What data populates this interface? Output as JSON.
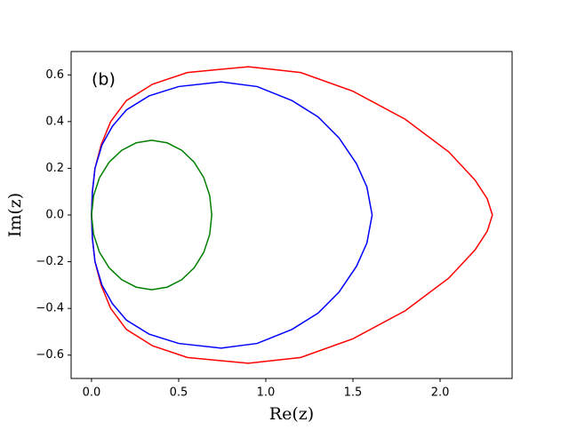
{
  "chart_data": {
    "type": "line",
    "annotation": "(b)",
    "xlabel": "Re(z)",
    "ylabel": "Im(z)",
    "xlim": [
      -0.117,
      2.413
    ],
    "ylim": [
      -0.7,
      0.7
    ],
    "xticks": [
      {
        "value": 0,
        "label": "0.0"
      },
      {
        "value": 0.5,
        "label": "0.5"
      },
      {
        "value": 1,
        "label": "1.0"
      },
      {
        "value": 1.5,
        "label": "1.5"
      },
      {
        "value": 2,
        "label": "2.0"
      }
    ],
    "yticks": [
      {
        "value": -0.6,
        "label": "−0.6"
      },
      {
        "value": -0.4,
        "label": "−0.4"
      },
      {
        "value": -0.2,
        "label": "−0.2"
      },
      {
        "value": 0,
        "label": "0.0"
      },
      {
        "value": 0.2,
        "label": "0.2"
      },
      {
        "value": 0.4,
        "label": "0.4"
      },
      {
        "value": 0.6,
        "label": "0.6"
      }
    ],
    "series": [
      {
        "color": "#ff0000",
        "x": [
          0,
          0.005,
          0.02,
          0.055,
          0.11,
          0.2,
          0.35,
          0.55,
          0.9,
          1.2,
          1.5,
          1.8,
          2.05,
          2.2,
          2.27,
          2.3,
          2.27,
          2.2,
          2.05,
          1.8,
          1.5,
          1.2,
          0.9,
          0.55,
          0.35,
          0.2,
          0.11,
          0.055,
          0.02,
          0.005,
          0
        ],
        "values": [
          0,
          0.1,
          0.2,
          0.3,
          0.4,
          0.49,
          0.56,
          0.61,
          0.635,
          0.61,
          0.53,
          0.41,
          0.27,
          0.15,
          0.07,
          0,
          -0.07,
          -0.15,
          -0.27,
          -0.41,
          -0.53,
          -0.61,
          -0.635,
          -0.61,
          -0.56,
          -0.49,
          -0.4,
          -0.3,
          -0.2,
          -0.1,
          0
        ]
      },
      {
        "color": "#0000ff",
        "x": [
          0,
          0.005,
          0.02,
          0.06,
          0.12,
          0.2,
          0.33,
          0.5,
          0.745,
          0.95,
          1.15,
          1.3,
          1.42,
          1.52,
          1.58,
          1.61,
          1.58,
          1.52,
          1.42,
          1.3,
          1.15,
          0.95,
          0.745,
          0.5,
          0.33,
          0.2,
          0.12,
          0.06,
          0.02,
          0.005,
          0
        ],
        "values": [
          0,
          0.1,
          0.2,
          0.3,
          0.38,
          0.45,
          0.51,
          0.55,
          0.57,
          0.55,
          0.49,
          0.42,
          0.33,
          0.22,
          0.12,
          0,
          -0.12,
          -0.22,
          -0.33,
          -0.42,
          -0.49,
          -0.55,
          -0.57,
          -0.55,
          -0.51,
          -0.45,
          -0.38,
          -0.3,
          -0.2,
          -0.1,
          0
        ]
      },
      {
        "color": "#008000",
        "x": [
          0,
          0.012,
          0.046,
          0.101,
          0.173,
          0.256,
          0.345,
          0.434,
          0.518,
          0.589,
          0.644,
          0.678,
          0.69,
          0.678,
          0.644,
          0.589,
          0.518,
          0.434,
          0.345,
          0.256,
          0.173,
          0.101,
          0.046,
          0.012,
          0
        ],
        "values": [
          0,
          0.083,
          0.16,
          0.226,
          0.277,
          0.309,
          0.32,
          0.309,
          0.277,
          0.226,
          0.16,
          0.083,
          0,
          -0.083,
          -0.16,
          -0.226,
          -0.277,
          -0.309,
          -0.32,
          -0.309,
          -0.277,
          -0.226,
          -0.16,
          -0.083,
          0
        ]
      }
    ]
  }
}
